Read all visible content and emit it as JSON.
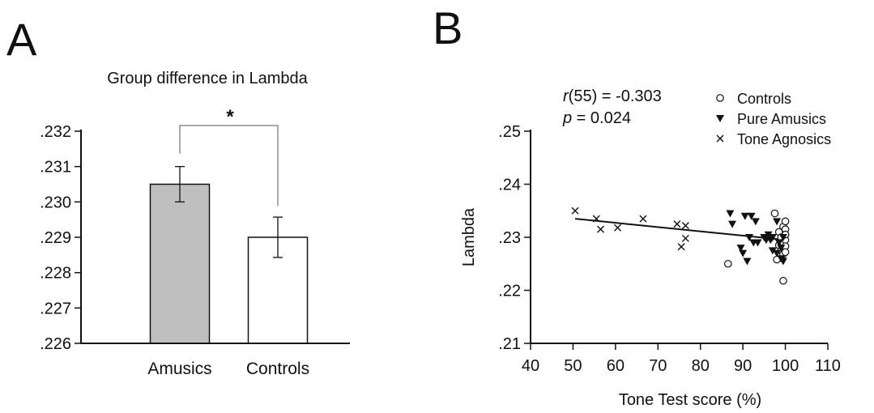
{
  "panels": {
    "a_label": "A",
    "b_label": "B"
  },
  "chart_data": [
    {
      "type": "bar",
      "title": "Group difference in Lambda",
      "xlabel": "",
      "ylabel": "",
      "categories": [
        "Amusics",
        "Controls"
      ],
      "values": [
        0.2305,
        0.229
      ],
      "errors": [
        0.0005,
        0.00057
      ],
      "bar_colors": [
        "#bfbfbf",
        "#ffffff"
      ],
      "ylim": [
        0.226,
        0.232
      ],
      "yticks": [
        {
          "value": 0.226,
          "label": ".226"
        },
        {
          "value": 0.227,
          "label": ".227"
        },
        {
          "value": 0.228,
          "label": ".228"
        },
        {
          "value": 0.229,
          "label": ".229"
        },
        {
          "value": 0.23,
          "label": ".230"
        },
        {
          "value": 0.231,
          "label": ".231"
        },
        {
          "value": 0.232,
          "label": ".232"
        }
      ],
      "significance": "*",
      "grid": false
    },
    {
      "type": "scatter",
      "xlabel": "Tone Test score (%)",
      "ylabel": "Lambda",
      "xlim": [
        40,
        110
      ],
      "ylim": [
        0.21,
        0.25
      ],
      "xticks": [
        "40",
        "50",
        "60",
        "70",
        "80",
        "90",
        "100",
        "110"
      ],
      "yticks": [
        {
          "value": 0.21,
          "label": ".21"
        },
        {
          "value": 0.22,
          "label": ".22"
        },
        {
          "value": 0.23,
          "label": ".23"
        },
        {
          "value": 0.24,
          "label": ".24"
        },
        {
          "value": 0.25,
          "label": ".25"
        }
      ],
      "stats": {
        "r_sym": "r",
        "r_rest": "(55) = -0.303",
        "p_sym": "p",
        "p_rest": " = 0.024"
      },
      "legend_position": "top-right",
      "grid": false,
      "fit_line": {
        "x": [
          50.5,
          100
        ],
        "y": [
          0.2335,
          0.2295
        ]
      },
      "series": [
        {
          "name": "Controls",
          "marker": "circle",
          "points": [
            [
              86.5,
              0.225
            ],
            [
              97.5,
              0.2345
            ],
            [
              98,
              0.2258
            ],
            [
              98.5,
              0.2285
            ],
            [
              98.5,
              0.231
            ],
            [
              99,
              0.2275
            ],
            [
              99,
              0.23
            ],
            [
              99.5,
              0.232
            ],
            [
              99.5,
              0.229
            ],
            [
              99.5,
              0.2268
            ],
            [
              99.5,
              0.2218
            ],
            [
              100,
              0.233
            ],
            [
              100,
              0.2315
            ],
            [
              100,
              0.2305
            ],
            [
              100,
              0.2295
            ],
            [
              100,
              0.2283
            ],
            [
              100,
              0.2272
            ],
            [
              100,
              0.2305
            ]
          ]
        },
        {
          "name": "Pure Amusics",
          "marker": "triangle-down",
          "points": [
            [
              87,
              0.2345
            ],
            [
              87.5,
              0.2325
            ],
            [
              89.5,
              0.228
            ],
            [
              90,
              0.227
            ],
            [
              90.5,
              0.234
            ],
            [
              91,
              0.2255
            ],
            [
              91.5,
              0.23
            ],
            [
              92,
              0.234
            ],
            [
              92.5,
              0.229
            ],
            [
              93,
              0.233
            ],
            [
              93.5,
              0.229
            ],
            [
              95,
              0.23
            ],
            [
              95.5,
              0.2295
            ],
            [
              96,
              0.2305
            ],
            [
              96.5,
              0.2295
            ],
            [
              97,
              0.2275
            ],
            [
              97,
              0.23
            ],
            [
              98,
              0.233
            ],
            [
              98,
              0.227
            ],
            [
              98.5,
              0.229
            ],
            [
              99,
              0.228
            ],
            [
              99,
              0.226
            ],
            [
              99.5,
              0.23
            ],
            [
              99.5,
              0.2255
            ]
          ]
        },
        {
          "name": "Tone Agnosics",
          "marker": "x",
          "points": [
            [
              50.5,
              0.235
            ],
            [
              55.5,
              0.2335
            ],
            [
              56.5,
              0.2315
            ],
            [
              60.5,
              0.2318
            ],
            [
              66.5,
              0.2335
            ],
            [
              74.5,
              0.2325
            ],
            [
              75.5,
              0.2282
            ],
            [
              76.5,
              0.2322
            ],
            [
              76.5,
              0.2298
            ]
          ]
        }
      ]
    }
  ]
}
